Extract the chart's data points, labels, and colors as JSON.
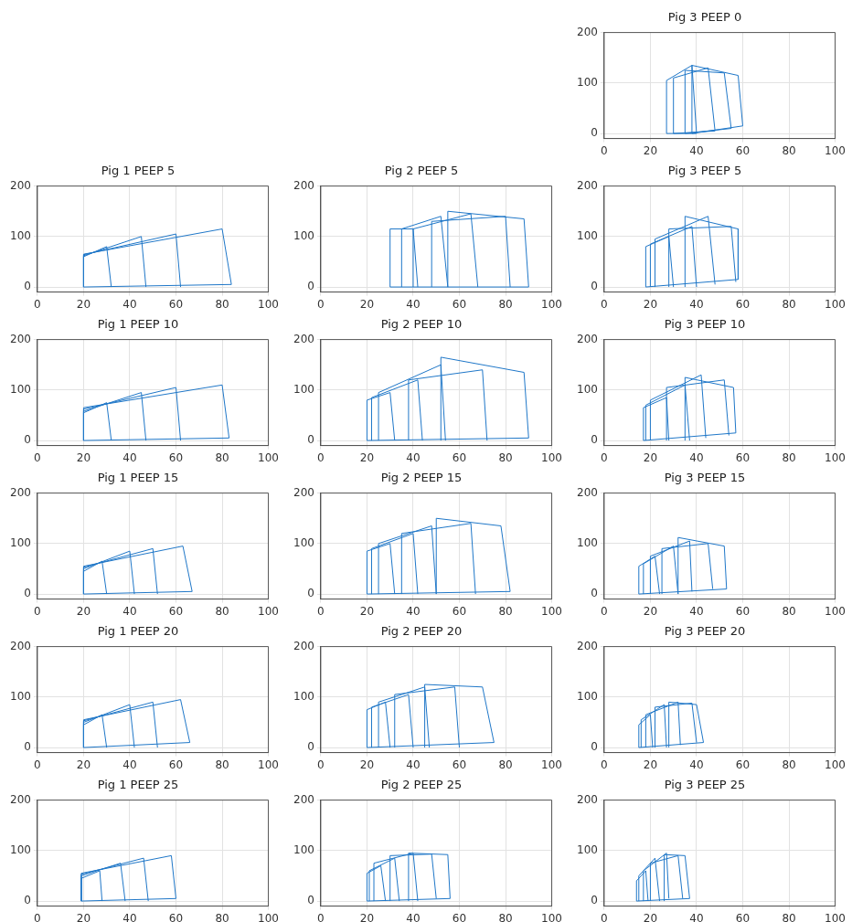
{
  "chart_data": [
    {
      "type": "line",
      "title": "Pig 3 PEEP 0",
      "xlim": [
        0,
        100
      ],
      "ylim": [
        -10,
        200
      ],
      "xticks": [
        0,
        20,
        40,
        60,
        80,
        100
      ],
      "yticks": [
        0,
        100,
        200
      ],
      "grid": true,
      "marker": "none",
      "line_style": "solid",
      "legend": false,
      "series": [
        {
          "color": "#1f77c8",
          "x": [
            27,
            27,
            38,
            40
          ],
          "values": [
            0,
            105,
            135,
            0
          ]
        },
        {
          "color": "#1f77c8",
          "x": [
            27,
            40
          ],
          "values": [
            0,
            0
          ]
        },
        {
          "color": "#1f77c8",
          "x": [
            30,
            30,
            45,
            48
          ],
          "values": [
            0,
            110,
            130,
            5
          ]
        },
        {
          "color": "#1f77c8",
          "x": [
            30,
            48
          ],
          "values": [
            0,
            5
          ]
        },
        {
          "color": "#1f77c8",
          "x": [
            35,
            35,
            52,
            55
          ],
          "values": [
            0,
            125,
            120,
            10
          ]
        },
        {
          "color": "#1f77c8",
          "x": [
            35,
            55
          ],
          "values": [
            0,
            10
          ]
        },
        {
          "color": "#1f77c8",
          "x": [
            38,
            38,
            58,
            60
          ],
          "values": [
            0,
            135,
            115,
            15
          ]
        },
        {
          "color": "#1f77c8",
          "x": [
            38,
            60
          ],
          "values": [
            0,
            15
          ]
        }
      ]
    },
    {
      "type": "line",
      "title": "Pig 1 PEEP 5",
      "xlim": [
        0,
        100
      ],
      "ylim": [
        -10,
        200
      ],
      "xticks": [
        0,
        20,
        40,
        60,
        80,
        100
      ],
      "yticks": [
        0,
        100,
        200
      ],
      "grid": true,
      "marker": "none",
      "line_style": "solid",
      "legend": false,
      "series": [
        {
          "color": "#1f77c8",
          "x": [
            20,
            20,
            30,
            32
          ],
          "values": [
            0,
            60,
            80,
            0
          ]
        },
        {
          "color": "#1f77c8",
          "x": [
            20,
            20,
            45,
            47
          ],
          "values": [
            0,
            62,
            100,
            0
          ]
        },
        {
          "color": "#1f77c8",
          "x": [
            20,
            20,
            60,
            62
          ],
          "values": [
            0,
            64,
            105,
            0
          ]
        },
        {
          "color": "#1f77c8",
          "x": [
            20,
            20,
            80,
            84
          ],
          "values": [
            0,
            65,
            115,
            5
          ]
        },
        {
          "color": "#1f77c8",
          "x": [
            20,
            84
          ],
          "values": [
            0,
            5
          ]
        }
      ]
    },
    {
      "type": "line",
      "title": "Pig 2 PEEP 5",
      "xlim": [
        0,
        100
      ],
      "ylim": [
        -10,
        200
      ],
      "xticks": [
        0,
        20,
        40,
        60,
        80,
        100
      ],
      "yticks": [
        0,
        100,
        200
      ],
      "grid": true,
      "marker": "none",
      "line_style": "solid",
      "legend": false,
      "series": [
        {
          "color": "#1f77c8",
          "x": [
            30,
            30,
            40,
            42
          ],
          "values": [
            0,
            115,
            115,
            0
          ]
        },
        {
          "color": "#1f77c8",
          "x": [
            35,
            35,
            52,
            55
          ],
          "values": [
            0,
            115,
            140,
            0
          ]
        },
        {
          "color": "#1f77c8",
          "x": [
            40,
            40,
            65,
            68
          ],
          "values": [
            0,
            115,
            145,
            0
          ]
        },
        {
          "color": "#1f77c8",
          "x": [
            48,
            48,
            80,
            82
          ],
          "values": [
            0,
            130,
            140,
            0
          ]
        },
        {
          "color": "#1f77c8",
          "x": [
            55,
            55,
            88,
            90
          ],
          "values": [
            0,
            150,
            135,
            0
          ]
        },
        {
          "color": "#1f77c8",
          "x": [
            30,
            90
          ],
          "values": [
            0,
            0
          ]
        }
      ]
    },
    {
      "type": "line",
      "title": "Pig 3 PEEP 5",
      "xlim": [
        0,
        100
      ],
      "ylim": [
        -10,
        200
      ],
      "xticks": [
        0,
        20,
        40,
        60,
        80,
        100
      ],
      "yticks": [
        0,
        100,
        200
      ],
      "grid": true,
      "marker": "none",
      "line_style": "solid",
      "legend": false,
      "series": [
        {
          "color": "#1f77c8",
          "x": [
            18,
            18,
            28,
            30
          ],
          "values": [
            0,
            80,
            100,
            0
          ]
        },
        {
          "color": "#1f77c8",
          "x": [
            20,
            20,
            38,
            40
          ],
          "values": [
            0,
            85,
            120,
            0
          ]
        },
        {
          "color": "#1f77c8",
          "x": [
            22,
            22,
            45,
            48
          ],
          "values": [
            0,
            95,
            140,
            5
          ]
        },
        {
          "color": "#1f77c8",
          "x": [
            28,
            28,
            55,
            57
          ],
          "values": [
            0,
            115,
            120,
            10
          ]
        },
        {
          "color": "#1f77c8",
          "x": [
            35,
            35,
            58,
            58
          ],
          "values": [
            0,
            140,
            115,
            15
          ]
        },
        {
          "color": "#1f77c8",
          "x": [
            18,
            58
          ],
          "values": [
            0,
            15
          ]
        }
      ]
    },
    {
      "type": "line",
      "title": "Pig 1 PEEP 10",
      "xlim": [
        0,
        100
      ],
      "ylim": [
        -10,
        200
      ],
      "xticks": [
        0,
        20,
        40,
        60,
        80,
        100
      ],
      "yticks": [
        0,
        100,
        200
      ],
      "grid": true,
      "marker": "none",
      "line_style": "solid",
      "legend": false,
      "series": [
        {
          "color": "#1f77c8",
          "x": [
            20,
            20,
            30,
            32
          ],
          "values": [
            0,
            55,
            75,
            0
          ]
        },
        {
          "color": "#1f77c8",
          "x": [
            20,
            20,
            45,
            47
          ],
          "values": [
            0,
            58,
            95,
            0
          ]
        },
        {
          "color": "#1f77c8",
          "x": [
            20,
            20,
            60,
            62
          ],
          "values": [
            0,
            62,
            105,
            0
          ]
        },
        {
          "color": "#1f77c8",
          "x": [
            20,
            20,
            80,
            83
          ],
          "values": [
            0,
            65,
            110,
            5
          ]
        },
        {
          "color": "#1f77c8",
          "x": [
            20,
            83
          ],
          "values": [
            0,
            5
          ]
        }
      ]
    },
    {
      "type": "line",
      "title": "Pig 2 PEEP 10",
      "xlim": [
        0,
        100
      ],
      "ylim": [
        -10,
        200
      ],
      "xticks": [
        0,
        20,
        40,
        60,
        80,
        100
      ],
      "yticks": [
        0,
        100,
        200
      ],
      "grid": true,
      "marker": "none",
      "line_style": "solid",
      "legend": false,
      "series": [
        {
          "color": "#1f77c8",
          "x": [
            20,
            20,
            30,
            32
          ],
          "values": [
            0,
            80,
            95,
            0
          ]
        },
        {
          "color": "#1f77c8",
          "x": [
            22,
            22,
            42,
            44
          ],
          "values": [
            0,
            85,
            120,
            0
          ]
        },
        {
          "color": "#1f77c8",
          "x": [
            25,
            25,
            52,
            54
          ],
          "values": [
            0,
            95,
            150,
            0
          ]
        },
        {
          "color": "#1f77c8",
          "x": [
            38,
            38,
            70,
            72
          ],
          "values": [
            0,
            120,
            140,
            0
          ]
        },
        {
          "color": "#1f77c8",
          "x": [
            52,
            52,
            88,
            90
          ],
          "values": [
            0,
            165,
            135,
            5
          ]
        },
        {
          "color": "#1f77c8",
          "x": [
            20,
            90
          ],
          "values": [
            0,
            5
          ]
        }
      ]
    },
    {
      "type": "line",
      "title": "Pig 3 PEEP 10",
      "xlim": [
        0,
        100
      ],
      "ylim": [
        -10,
        200
      ],
      "xticks": [
        0,
        20,
        40,
        60,
        80,
        100
      ],
      "yticks": [
        0,
        100,
        200
      ],
      "grid": true,
      "marker": "none",
      "line_style": "solid",
      "legend": false,
      "series": [
        {
          "color": "#1f77c8",
          "x": [
            17,
            17,
            27,
            28
          ],
          "values": [
            0,
            65,
            85,
            0
          ]
        },
        {
          "color": "#1f77c8",
          "x": [
            18,
            18,
            35,
            37
          ],
          "values": [
            0,
            70,
            110,
            0
          ]
        },
        {
          "color": "#1f77c8",
          "x": [
            20,
            20,
            42,
            44
          ],
          "values": [
            0,
            80,
            130,
            5
          ]
        },
        {
          "color": "#1f77c8",
          "x": [
            27,
            27,
            52,
            54
          ],
          "values": [
            0,
            105,
            120,
            10
          ]
        },
        {
          "color": "#1f77c8",
          "x": [
            35,
            35,
            56,
            57
          ],
          "values": [
            0,
            125,
            105,
            15
          ]
        },
        {
          "color": "#1f77c8",
          "x": [
            17,
            57
          ],
          "values": [
            0,
            15
          ]
        }
      ]
    },
    {
      "type": "line",
      "title": "Pig 1 PEEP 15",
      "xlim": [
        0,
        100
      ],
      "ylim": [
        -10,
        200
      ],
      "xticks": [
        0,
        20,
        40,
        60,
        80,
        100
      ],
      "yticks": [
        0,
        100,
        200
      ],
      "grid": true,
      "marker": "none",
      "line_style": "solid",
      "legend": false,
      "series": [
        {
          "color": "#1f77c8",
          "x": [
            20,
            20,
            28,
            30
          ],
          "values": [
            0,
            45,
            65,
            0
          ]
        },
        {
          "color": "#1f77c8",
          "x": [
            20,
            20,
            40,
            42
          ],
          "values": [
            0,
            50,
            85,
            0
          ]
        },
        {
          "color": "#1f77c8",
          "x": [
            20,
            20,
            50,
            52
          ],
          "values": [
            0,
            53,
            90,
            0
          ]
        },
        {
          "color": "#1f77c8",
          "x": [
            20,
            20,
            63,
            67
          ],
          "values": [
            0,
            55,
            95,
            5
          ]
        },
        {
          "color": "#1f77c8",
          "x": [
            20,
            67
          ],
          "values": [
            0,
            5
          ]
        }
      ]
    },
    {
      "type": "line",
      "title": "Pig 2 PEEP 15",
      "xlim": [
        0,
        100
      ],
      "ylim": [
        -10,
        200
      ],
      "xticks": [
        0,
        20,
        40,
        60,
        80,
        100
      ],
      "yticks": [
        0,
        100,
        200
      ],
      "grid": true,
      "marker": "none",
      "line_style": "solid",
      "legend": false,
      "series": [
        {
          "color": "#1f77c8",
          "x": [
            20,
            20,
            30,
            32
          ],
          "values": [
            0,
            85,
            100,
            0
          ]
        },
        {
          "color": "#1f77c8",
          "x": [
            22,
            22,
            40,
            42
          ],
          "values": [
            0,
            90,
            120,
            0
          ]
        },
        {
          "color": "#1f77c8",
          "x": [
            25,
            25,
            48,
            50
          ],
          "values": [
            0,
            100,
            135,
            0
          ]
        },
        {
          "color": "#1f77c8",
          "x": [
            35,
            35,
            65,
            67
          ],
          "values": [
            0,
            120,
            140,
            0
          ]
        },
        {
          "color": "#1f77c8",
          "x": [
            50,
            50,
            78,
            82
          ],
          "values": [
            0,
            150,
            135,
            5
          ]
        },
        {
          "color": "#1f77c8",
          "x": [
            20,
            82
          ],
          "values": [
            0,
            5
          ]
        }
      ]
    },
    {
      "type": "line",
      "title": "Pig 3 PEEP 15",
      "xlim": [
        0,
        100
      ],
      "ylim": [
        -10,
        200
      ],
      "xticks": [
        0,
        20,
        40,
        60,
        80,
        100
      ],
      "yticks": [
        0,
        100,
        200
      ],
      "grid": true,
      "marker": "none",
      "line_style": "solid",
      "legend": false,
      "series": [
        {
          "color": "#1f77c8",
          "x": [
            15,
            15,
            22,
            24
          ],
          "values": [
            0,
            55,
            75,
            0
          ]
        },
        {
          "color": "#1f77c8",
          "x": [
            17,
            17,
            30,
            32
          ],
          "values": [
            0,
            60,
            95,
            0
          ]
        },
        {
          "color": "#1f77c8",
          "x": [
            20,
            20,
            37,
            38
          ],
          "values": [
            0,
            75,
            105,
            5
          ]
        },
        {
          "color": "#1f77c8",
          "x": [
            25,
            25,
            45,
            47
          ],
          "values": [
            0,
            90,
            100,
            10
          ]
        },
        {
          "color": "#1f77c8",
          "x": [
            32,
            32,
            52,
            53
          ],
          "values": [
            0,
            112,
            95,
            10
          ]
        },
        {
          "color": "#1f77c8",
          "x": [
            15,
            53
          ],
          "values": [
            0,
            10
          ]
        }
      ]
    },
    {
      "type": "line",
      "title": "Pig 1 PEEP 20",
      "xlim": [
        0,
        100
      ],
      "ylim": [
        -10,
        200
      ],
      "xticks": [
        0,
        20,
        40,
        60,
        80,
        100
      ],
      "yticks": [
        0,
        100,
        200
      ],
      "grid": true,
      "marker": "none",
      "line_style": "solid",
      "legend": false,
      "series": [
        {
          "color": "#1f77c8",
          "x": [
            20,
            20,
            28,
            30
          ],
          "values": [
            0,
            45,
            65,
            0
          ]
        },
        {
          "color": "#1f77c8",
          "x": [
            20,
            20,
            40,
            42
          ],
          "values": [
            0,
            50,
            85,
            0
          ]
        },
        {
          "color": "#1f77c8",
          "x": [
            20,
            20,
            50,
            52
          ],
          "values": [
            0,
            53,
            90,
            0
          ]
        },
        {
          "color": "#1f77c8",
          "x": [
            20,
            20,
            62,
            66
          ],
          "values": [
            0,
            55,
            95,
            10
          ]
        },
        {
          "color": "#1f77c8",
          "x": [
            20,
            66
          ],
          "values": [
            0,
            10
          ]
        }
      ]
    },
    {
      "type": "line",
      "title": "Pig 2 PEEP 20",
      "xlim": [
        0,
        100
      ],
      "ylim": [
        -10,
        200
      ],
      "xticks": [
        0,
        20,
        40,
        60,
        80,
        100
      ],
      "yticks": [
        0,
        100,
        200
      ],
      "grid": true,
      "marker": "none",
      "line_style": "solid",
      "legend": false,
      "series": [
        {
          "color": "#1f77c8",
          "x": [
            20,
            20,
            28,
            30
          ],
          "values": [
            0,
            75,
            90,
            0
          ]
        },
        {
          "color": "#1f77c8",
          "x": [
            22,
            22,
            38,
            40
          ],
          "values": [
            0,
            80,
            105,
            0
          ]
        },
        {
          "color": "#1f77c8",
          "x": [
            25,
            25,
            45,
            47
          ],
          "values": [
            0,
            90,
            120,
            0
          ]
        },
        {
          "color": "#1f77c8",
          "x": [
            32,
            32,
            58,
            60
          ],
          "values": [
            0,
            105,
            120,
            0
          ]
        },
        {
          "color": "#1f77c8",
          "x": [
            45,
            45,
            70,
            75
          ],
          "values": [
            0,
            125,
            120,
            10
          ]
        },
        {
          "color": "#1f77c8",
          "x": [
            20,
            75
          ],
          "values": [
            0,
            10
          ]
        }
      ]
    },
    {
      "type": "line",
      "title": "Pig 3 PEEP 20",
      "xlim": [
        0,
        100
      ],
      "ylim": [
        -10,
        200
      ],
      "xticks": [
        0,
        20,
        40,
        60,
        80,
        100
      ],
      "yticks": [
        0,
        100,
        200
      ],
      "grid": true,
      "marker": "none",
      "line_style": "solid",
      "legend": false,
      "series": [
        {
          "color": "#1f77c8",
          "x": [
            15,
            15,
            20,
            21
          ],
          "values": [
            0,
            45,
            65,
            0
          ]
        },
        {
          "color": "#1f77c8",
          "x": [
            16,
            16,
            26,
            27
          ],
          "values": [
            0,
            55,
            85,
            0
          ]
        },
        {
          "color": "#1f77c8",
          "x": [
            18,
            18,
            32,
            33
          ],
          "values": [
            0,
            65,
            90,
            5
          ]
        },
        {
          "color": "#1f77c8",
          "x": [
            22,
            22,
            38,
            40
          ],
          "values": [
            0,
            80,
            88,
            10
          ]
        },
        {
          "color": "#1f77c8",
          "x": [
            28,
            28,
            40,
            43
          ],
          "values": [
            0,
            90,
            85,
            10
          ]
        },
        {
          "color": "#1f77c8",
          "x": [
            15,
            43
          ],
          "values": [
            0,
            10
          ]
        }
      ]
    },
    {
      "type": "line",
      "title": "Pig 1 PEEP 25",
      "xlim": [
        0,
        100
      ],
      "ylim": [
        -10,
        200
      ],
      "xticks": [
        0,
        20,
        40,
        60,
        80,
        100
      ],
      "yticks": [
        0,
        100,
        200
      ],
      "grid": true,
      "marker": "none",
      "line_style": "solid",
      "legend": false,
      "series": [
        {
          "color": "#1f77c8",
          "x": [
            19,
            19,
            27,
            28
          ],
          "values": [
            0,
            45,
            60,
            0
          ]
        },
        {
          "color": "#1f77c8",
          "x": [
            19,
            19,
            36,
            38
          ],
          "values": [
            0,
            50,
            75,
            0
          ]
        },
        {
          "color": "#1f77c8",
          "x": [
            19,
            19,
            46,
            48
          ],
          "values": [
            0,
            53,
            85,
            0
          ]
        },
        {
          "color": "#1f77c8",
          "x": [
            19,
            19,
            58,
            60
          ],
          "values": [
            0,
            55,
            90,
            5
          ]
        },
        {
          "color": "#1f77c8",
          "x": [
            19,
            60
          ],
          "values": [
            0,
            5
          ]
        }
      ]
    },
    {
      "type": "line",
      "title": "Pig 2 PEEP 25",
      "xlim": [
        0,
        100
      ],
      "ylim": [
        -10,
        200
      ],
      "xticks": [
        0,
        20,
        40,
        60,
        80,
        100
      ],
      "yticks": [
        0,
        100,
        200
      ],
      "grid": true,
      "marker": "none",
      "line_style": "solid",
      "legend": false,
      "series": [
        {
          "color": "#1f77c8",
          "x": [
            20,
            20,
            26,
            28
          ],
          "values": [
            0,
            55,
            70,
            0
          ]
        },
        {
          "color": "#1f77c8",
          "x": [
            21,
            21,
            32,
            34
          ],
          "values": [
            0,
            60,
            85,
            0
          ]
        },
        {
          "color": "#1f77c8",
          "x": [
            23,
            23,
            40,
            42
          ],
          "values": [
            0,
            75,
            95,
            0
          ]
        },
        {
          "color": "#1f77c8",
          "x": [
            30,
            30,
            48,
            50
          ],
          "values": [
            0,
            90,
            93,
            5
          ]
        },
        {
          "color": "#1f77c8",
          "x": [
            38,
            38,
            55,
            56
          ],
          "values": [
            0,
            95,
            92,
            5
          ]
        },
        {
          "color": "#1f77c8",
          "x": [
            20,
            56
          ],
          "values": [
            0,
            5
          ]
        }
      ]
    },
    {
      "type": "line",
      "title": "Pig 3 PEEP 25",
      "xlim": [
        0,
        100
      ],
      "ylim": [
        -10,
        200
      ],
      "xticks": [
        0,
        20,
        40,
        60,
        80,
        100
      ],
      "yticks": [
        0,
        100,
        200
      ],
      "grid": true,
      "marker": "none",
      "line_style": "solid",
      "legend": false,
      "series": [
        {
          "color": "#1f77c8",
          "x": [
            14,
            14,
            18,
            19
          ],
          "values": [
            0,
            40,
            60,
            0
          ]
        },
        {
          "color": "#1f77c8",
          "x": [
            15,
            15,
            22,
            24
          ],
          "values": [
            0,
            50,
            85,
            0
          ]
        },
        {
          "color": "#1f77c8",
          "x": [
            17,
            17,
            27,
            28
          ],
          "values": [
            0,
            60,
            95,
            5
          ]
        },
        {
          "color": "#1f77c8",
          "x": [
            20,
            20,
            32,
            34
          ],
          "values": [
            0,
            75,
            90,
            5
          ]
        },
        {
          "color": "#1f77c8",
          "x": [
            26,
            26,
            35,
            37
          ],
          "values": [
            0,
            92,
            90,
            5
          ]
        },
        {
          "color": "#1f77c8",
          "x": [
            14,
            37
          ],
          "values": [
            0,
            5
          ]
        }
      ]
    }
  ]
}
